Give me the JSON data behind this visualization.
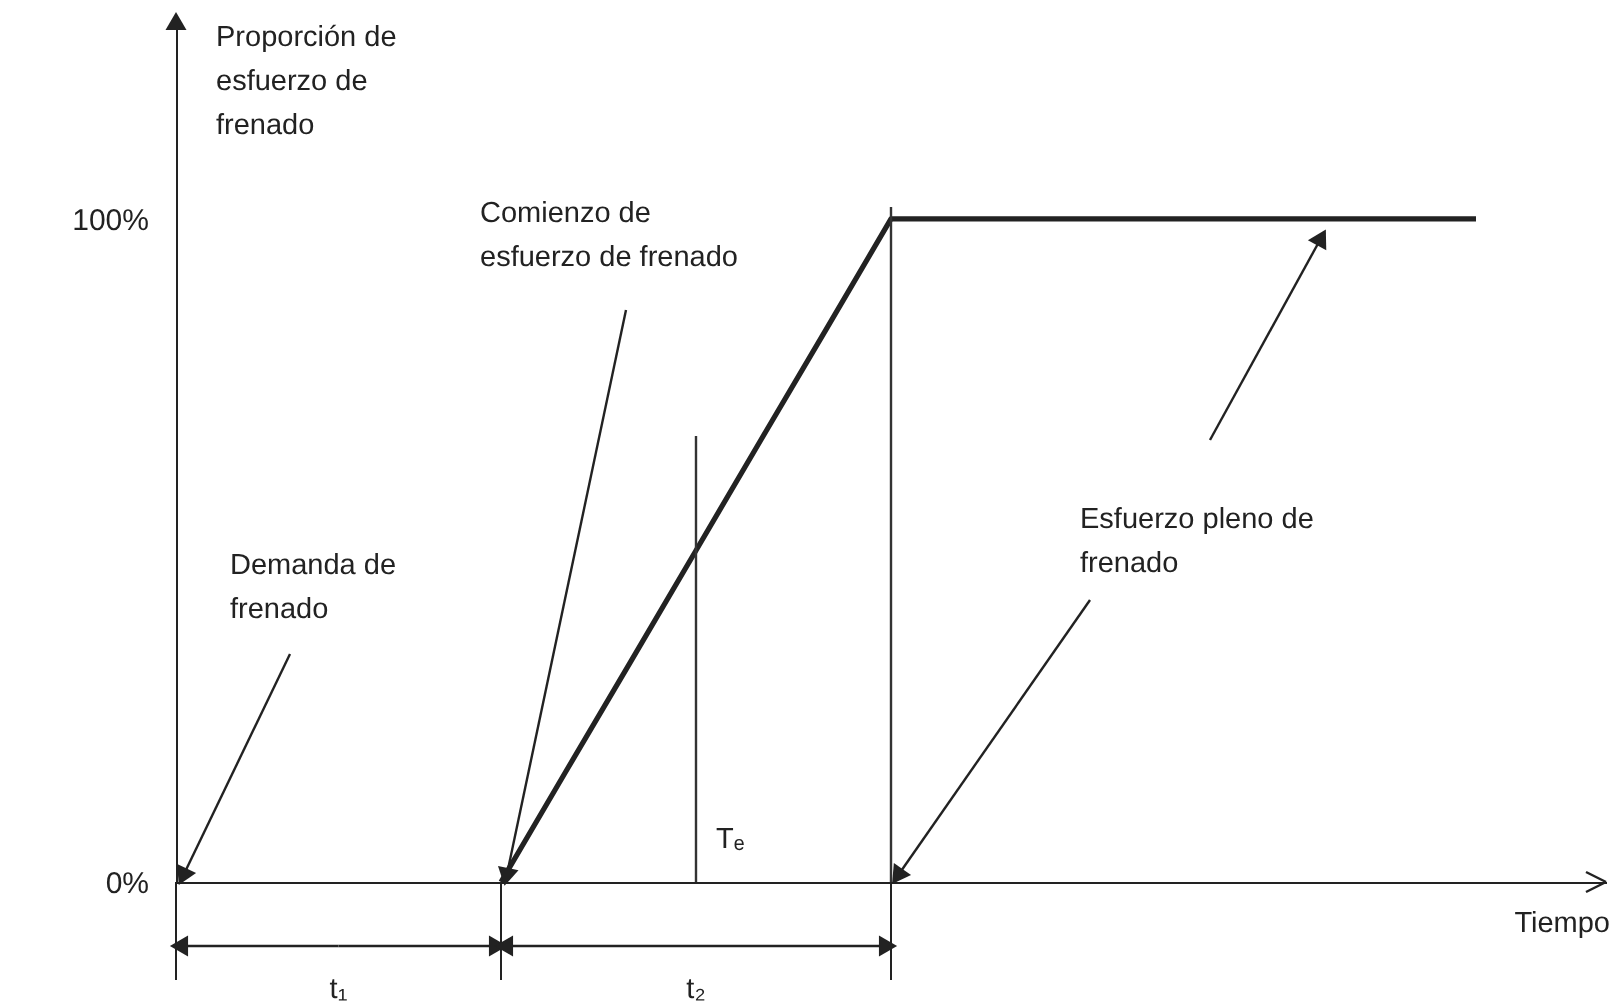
{
  "chart_data": {
    "type": "line",
    "ylabel": "Proporción de esfuerzo de frenado",
    "xlabel": "Tiempo",
    "categories": [
      null,
      null,
      null,
      null,
      null,
      null,
      null,
      null,
      null,
      null,
      null,
      null,
      null,
      null,
      null,
      null,
      null,
      null,
      null,
      null,
      null,
      null,
      null
    ],
    "series": [
      {
        "color": "#222222",
        "values": [
          null,
          null,
          null,
          null,
          null,
          0,
          16.7,
          33.3,
          50,
          66.7,
          83.3,
          100,
          100,
          100,
          100,
          100,
          100,
          100,
          100,
          100,
          100,
          null,
          null
        ]
      }
    ],
    "ylim": [
      0,
      130
    ],
    "yticks": [
      {
        "value": 0,
        "label": "0%"
      },
      {
        "value": 100,
        "label": "100%"
      }
    ],
    "annotations": [
      "Demanda de frenado",
      "Comienzo de esfuerzo de frenado",
      "Esfuerzo pleno de frenado",
      "t₁",
      "t₂",
      "Tₑ"
    ],
    "tick_labels": "y",
    "grid": false,
    "line_style": "solid",
    "marker": "none"
  }
}
